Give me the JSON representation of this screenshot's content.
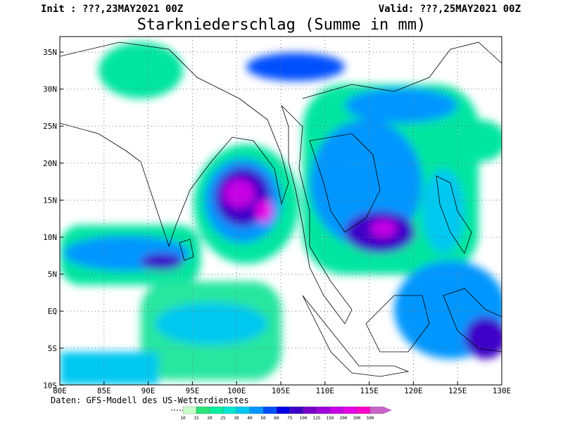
{
  "header": {
    "init": "Init : ???,23MAY2021 00Z",
    "valid": "Valid: ???,25MAY2021 00Z",
    "title": "Starkniederschlag (Summe in mm)"
  },
  "map": {
    "lat_labels": [
      "35N",
      "30N",
      "25N",
      "20N",
      "15N",
      "10N",
      "5N",
      "EQ",
      "5S",
      "10S"
    ],
    "lon_labels": [
      "80E",
      "85E",
      "90E",
      "95E",
      "100E",
      "105E",
      "110E",
      "115E",
      "120E",
      "125E",
      "130E"
    ]
  },
  "footer": {
    "source": "Daten: GFS-Modell des US-Wetterdienstes"
  },
  "colorbar": {
    "labels": [
      "10",
      "15",
      "20",
      "25",
      "30",
      "40",
      "50",
      "60",
      "75",
      "100",
      "125",
      "150",
      "200",
      "300",
      "500"
    ],
    "colors": [
      "#c8ffc8",
      "#28e678",
      "#00f0a0",
      "#00e6d2",
      "#00c8f0",
      "#0096ff",
      "#0050ff",
      "#0000e6",
      "#3c00c8",
      "#7800c8",
      "#a000dc",
      "#c800e6",
      "#e600e6",
      "#ff00c8",
      "#c864c8"
    ]
  }
}
